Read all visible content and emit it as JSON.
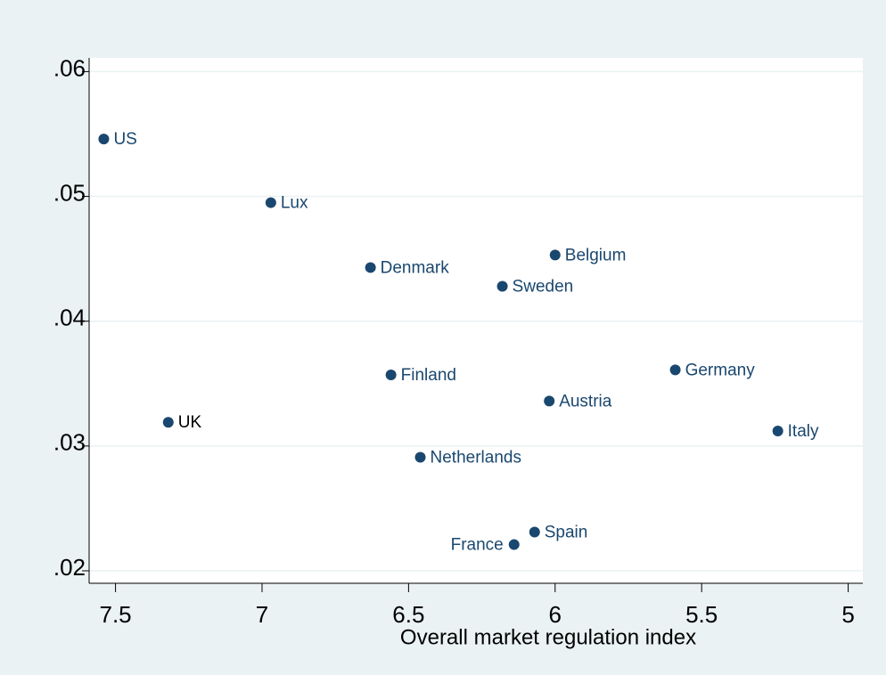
{
  "chart_data": {
    "type": "scatter",
    "x_label": "Overall market regulation index",
    "labels": [
      "US",
      "Lux",
      "Denmark",
      "Belgium",
      "Sweden",
      "Finland",
      "Germany",
      "Austria",
      "UK",
      "Italy",
      "Netherlands",
      "Spain",
      "France"
    ],
    "x": [
      7.54,
      6.97,
      6.63,
      6.0,
      6.18,
      6.56,
      5.59,
      6.02,
      7.32,
      5.24,
      6.46,
      6.07,
      6.14
    ],
    "values": [
      0.0546,
      0.0495,
      0.0443,
      0.0453,
      0.0428,
      0.0357,
      0.0361,
      0.0336,
      0.0319,
      0.0312,
      0.0291,
      0.0231,
      0.0221
    ],
    "label_positions": [
      "right",
      "right",
      "right",
      "right",
      "right",
      "right",
      "right",
      "right",
      "right",
      "right",
      "right",
      "right",
      "left"
    ],
    "label_colors": [
      "#1a476f",
      "#1a476f",
      "#1a476f",
      "#1a476f",
      "#1a476f",
      "#1a476f",
      "#1a476f",
      "#1a476f",
      "#000000",
      "#1a476f",
      "#1a476f",
      "#1a476f",
      "#1a476f"
    ],
    "color": "#1a476f",
    "xlim": [
      7.59,
      4.95
    ],
    "xticks": [
      7.5,
      7,
      6.5,
      6,
      5.5,
      5
    ],
    "ylim": [
      0.019,
      0.0611
    ],
    "yticks": [
      {
        "value": 0.02,
        "label": ".02"
      },
      {
        "value": 0.03,
        "label": ".03"
      },
      {
        "value": 0.04,
        "label": ".04"
      },
      {
        "value": 0.05,
        "label": ".05"
      },
      {
        "value": 0.06,
        "label": ".06"
      }
    ],
    "grid": true
  }
}
